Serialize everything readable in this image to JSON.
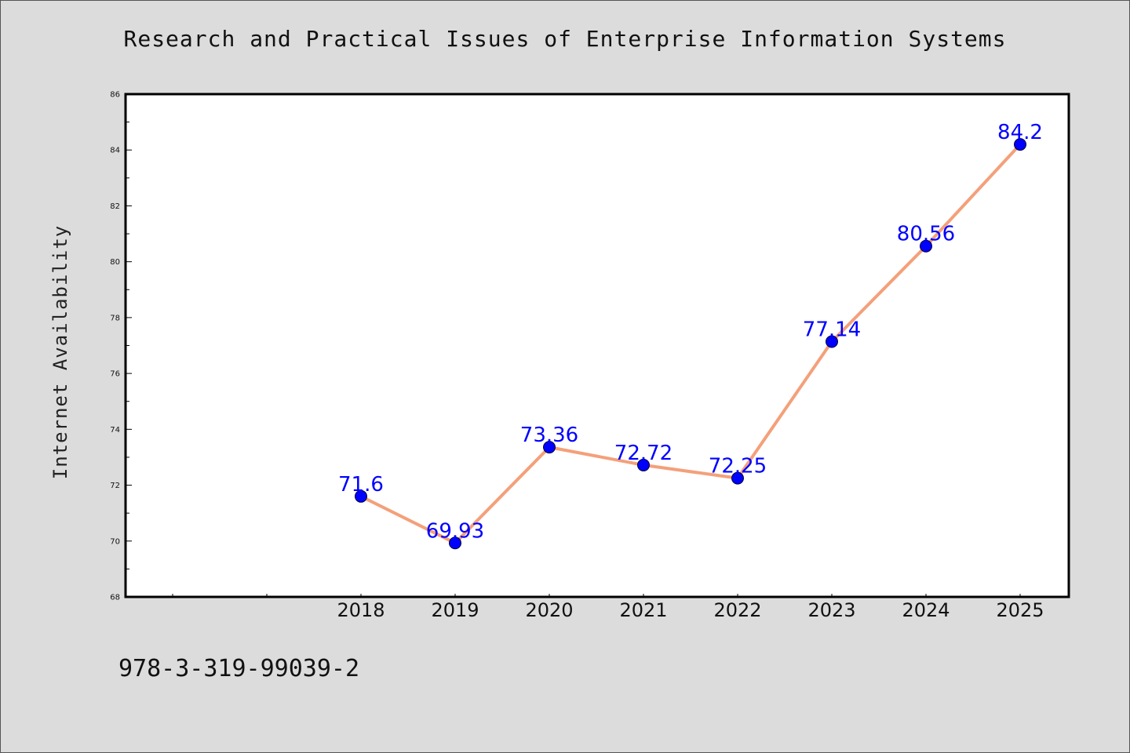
{
  "title": "Research and Practical Issues of Enterprise Information Systems",
  "ylabel": "Internet Availability",
  "footer_text": "978-3-319-99039-2",
  "colors": {
    "background": "#dcdcdc",
    "plot_background": "#ffffff",
    "line": "#f4a07a",
    "marker": "#0000ff",
    "data_label": "#0000ff"
  },
  "chart_data": {
    "type": "line",
    "title": "Research and Practical Issues of Enterprise Information Systems",
    "xlabel": "",
    "ylabel": "Internet Availability",
    "x": [
      "2018",
      "2019",
      "2020",
      "2021",
      "2022",
      "2023",
      "2024",
      "2025"
    ],
    "values": [
      71.6,
      69.93,
      73.36,
      72.72,
      72.25,
      77.14,
      80.56,
      84.2
    ],
    "data_labels": [
      "71.6",
      "69.93",
      "73.36",
      "72.72",
      "72.25",
      "77.14",
      "80.56",
      "84.2"
    ],
    "ylim": [
      68,
      86
    ],
    "yticks": [
      "68",
      "70",
      "72",
      "74",
      "76",
      "78",
      "80",
      "82",
      "84",
      "86"
    ],
    "grid": false,
    "legend": "none"
  }
}
